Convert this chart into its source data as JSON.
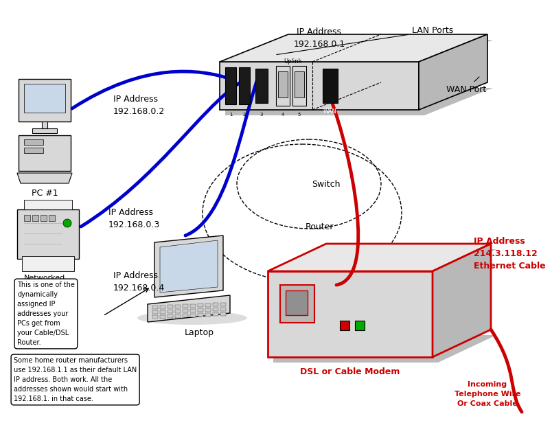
{
  "bg_color": "#ffffff",
  "blue_color": "#0000cc",
  "red_color": "#cc0000",
  "black_color": "#000000",
  "gray_light": "#d8d8d8",
  "gray_mid": "#b8b8b8",
  "gray_dark": "#909090",
  "gray_top": "#e8e8e8",
  "shadow_color": "#bbbbbb",
  "router_ip_line1": "IP Address",
  "router_ip_line2": "192.168.0.1",
  "lan_ports_label": "LAN Ports",
  "wan_port_label": "WAN Port",
  "pc_ip_line1": "IP Address",
  "pc_ip_line2": "192.168.0.2",
  "pc_label": "PC #1",
  "printer_ip_line1": "IP Address",
  "printer_ip_line2": "192.168.0.3",
  "printer_label": "Networked\nPrinter/FAX\nCopier/Scanner",
  "laptop_ip_line1": "IP Address",
  "laptop_ip_line2": "192.168.0.4",
  "laptop_label": "Laptop",
  "switch_label": "Switch",
  "router_label": "Router",
  "modem_ip_line1": "IP Address",
  "modem_ip_line2": "214.3.118.12",
  "modem_ip_line3": "Ethernet Cable",
  "modem_label": "DSL or Cable Modem",
  "incoming_label": "Incoming\nTelephone Wire\nOr Coax Cable",
  "note1": "This is one of the\ndynamically\nassigned IP\naddresses your\nPCs get from\nyour Cable/DSL\nRouter.",
  "note2": "Some home router manufacturers\nuse 192.168.1.1 as their default LAN\nIP address. Both work. All the\naddresses shown would start with\n192.168.1. in that case."
}
